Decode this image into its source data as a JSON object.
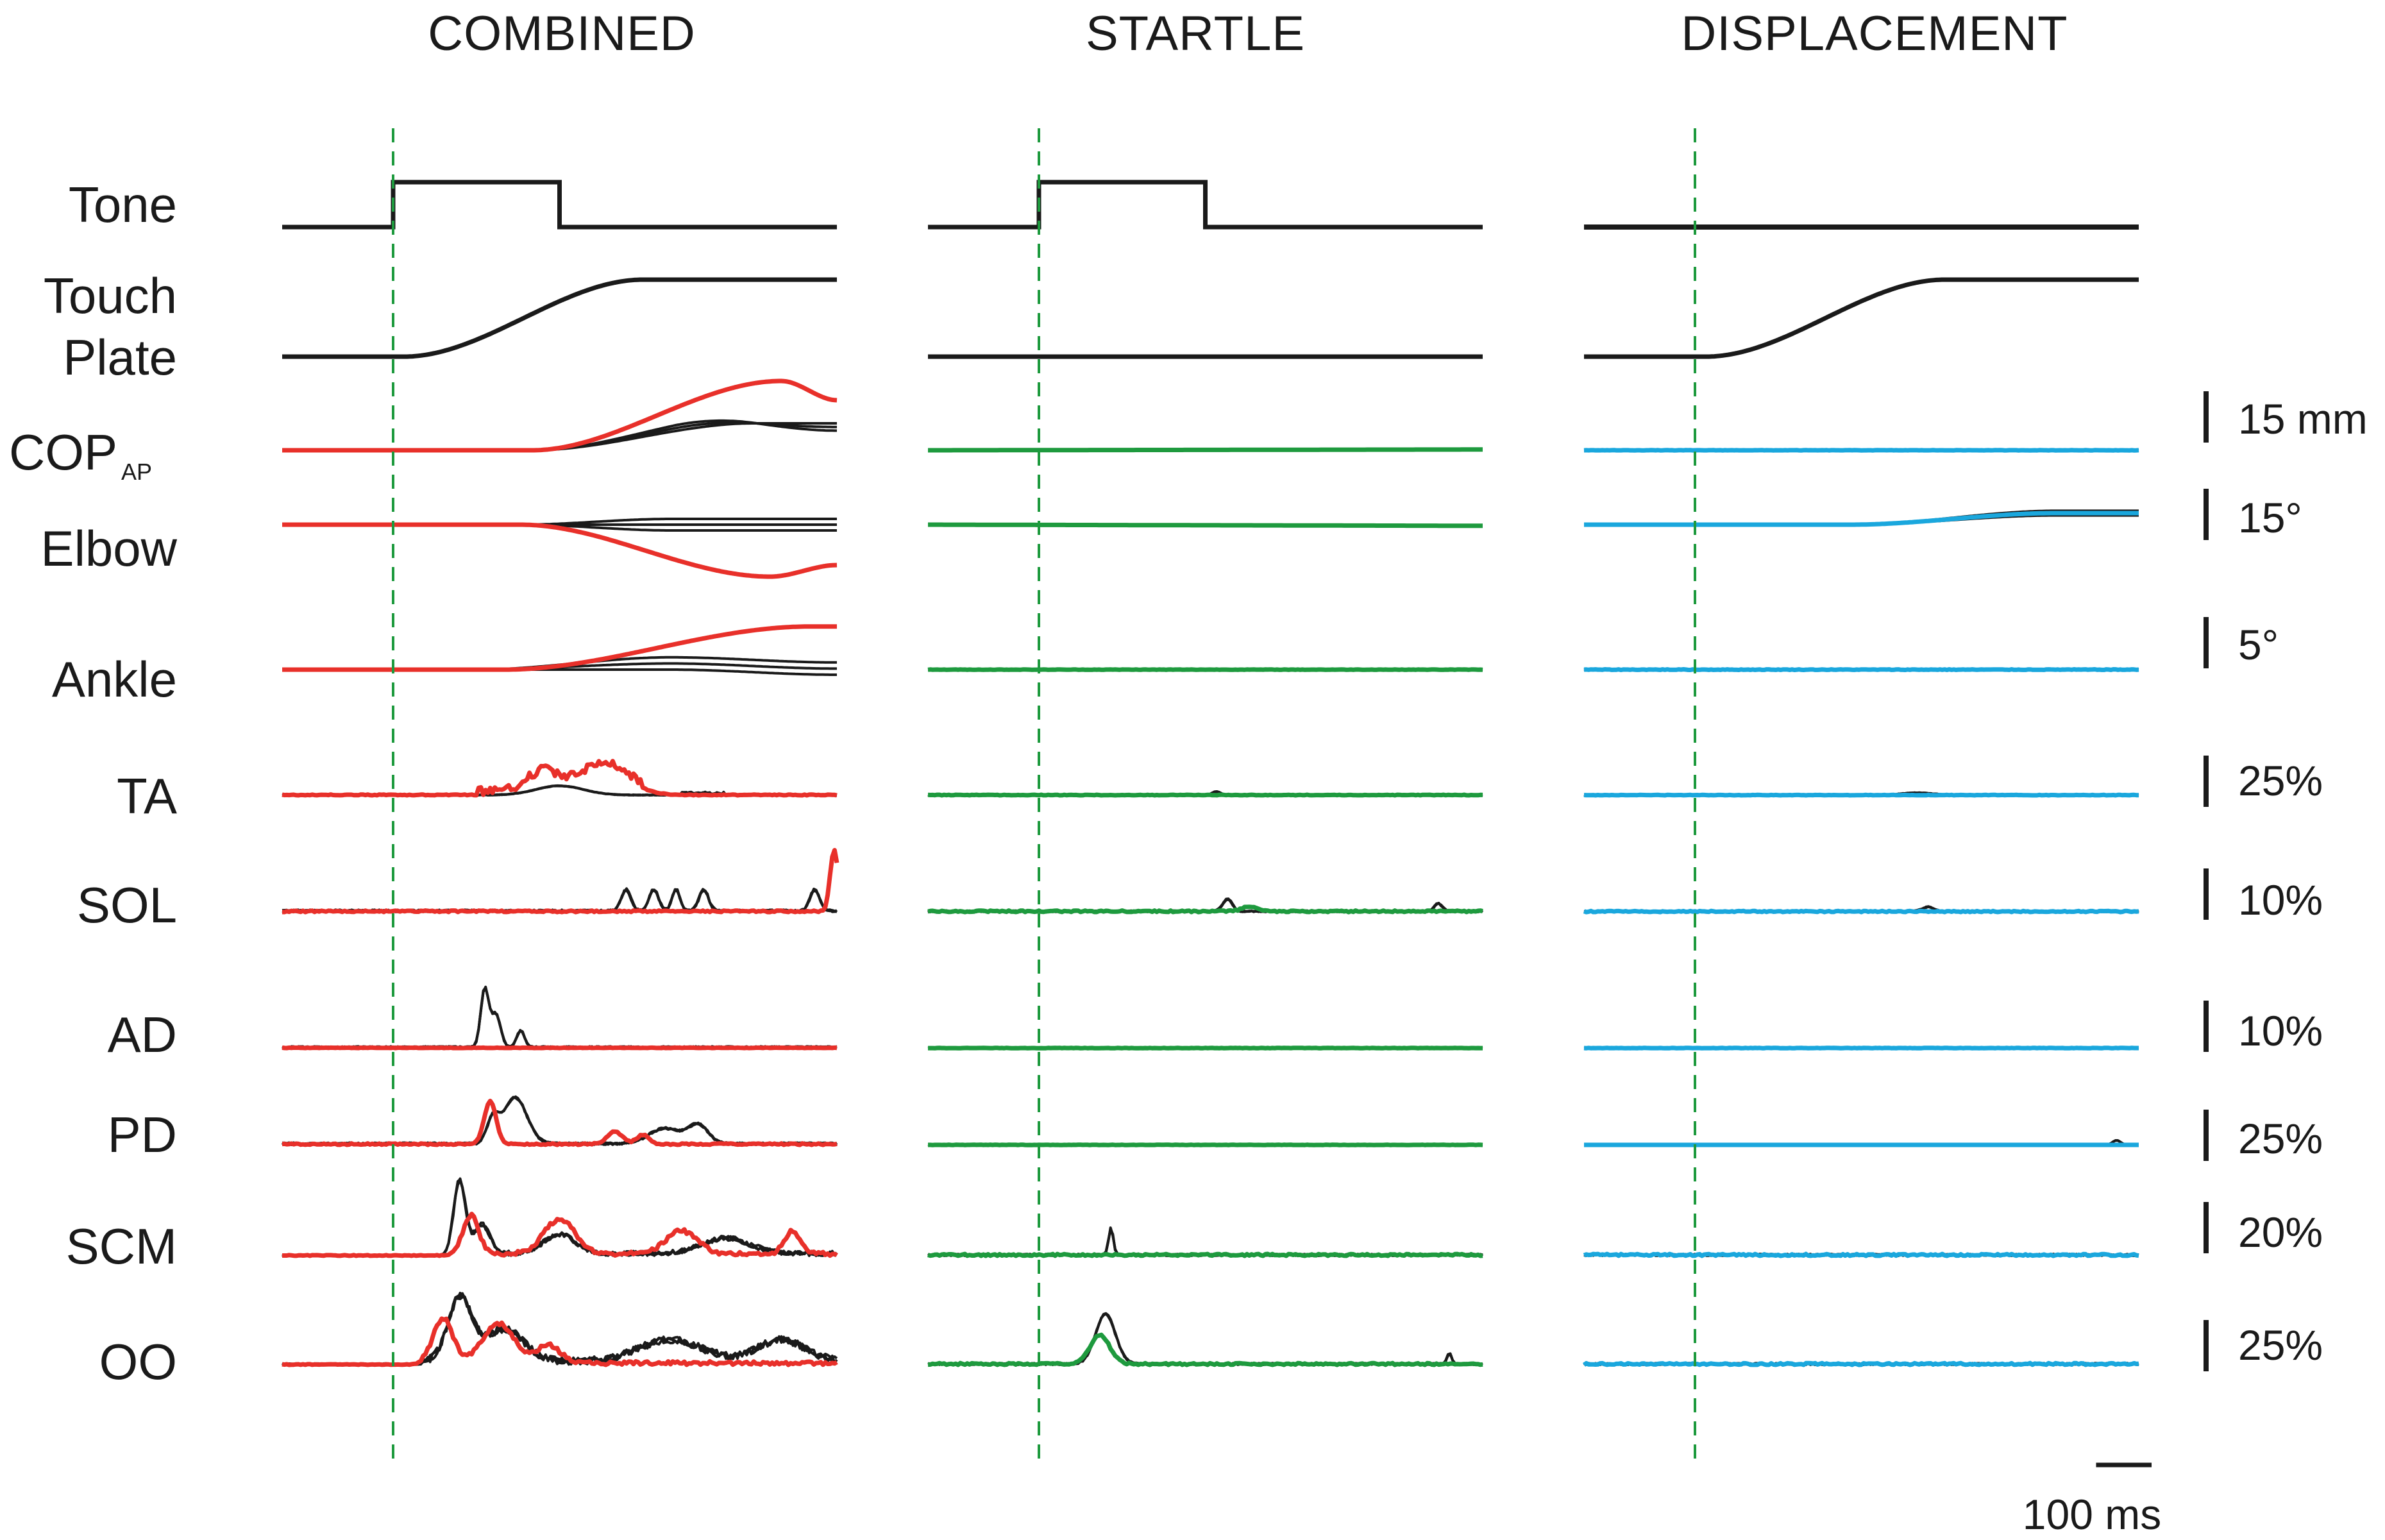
{
  "chart_data": {
    "type": "line",
    "title": "",
    "columns": [
      {
        "key": "combined",
        "title": "COMBINED",
        "trial_color": "#e8302a",
        "has_tone": true,
        "touch_onset_ms": 20
      },
      {
        "key": "startle",
        "title": "STARTLE",
        "trial_color": "#1e9a3e",
        "has_tone": true,
        "touch_onset_ms": null
      },
      {
        "key": "displacement",
        "title": "DISPLACEMENT",
        "trial_color": "#1aa7dd",
        "has_tone": false,
        "touch_onset_ms": 20
      }
    ],
    "rows": [
      {
        "key": "tone",
        "label": "Tone",
        "label_sub": "",
        "label_line2": "",
        "scale": ""
      },
      {
        "key": "touch",
        "label": "Touch",
        "label_sub": "",
        "label_line2": "Plate",
        "scale": ""
      },
      {
        "key": "cop",
        "label": "COP",
        "label_sub": "AP",
        "label_line2": "",
        "scale": "15 mm"
      },
      {
        "key": "elbow",
        "label": "Elbow",
        "label_sub": "",
        "label_line2": "",
        "scale": "15°"
      },
      {
        "key": "ankle",
        "label": "Ankle",
        "label_sub": "",
        "label_line2": "",
        "scale": "5°"
      },
      {
        "key": "ta",
        "label": "TA",
        "label_sub": "",
        "label_line2": "",
        "scale": "25%"
      },
      {
        "key": "sol",
        "label": "SOL",
        "label_sub": "",
        "label_line2": "",
        "scale": "10%"
      },
      {
        "key": "ad",
        "label": "AD",
        "label_sub": "",
        "label_line2": "",
        "scale": "10%"
      },
      {
        "key": "pd",
        "label": "PD",
        "label_sub": "",
        "label_line2": "",
        "scale": "25%"
      },
      {
        "key": "scm",
        "label": "SCM",
        "label_sub": "",
        "label_line2": "",
        "scale": "20%"
      },
      {
        "key": "oo",
        "label": "OO",
        "label_sub": "",
        "label_line2": "",
        "scale": "25%"
      }
    ],
    "time_axis": {
      "window_ms": [
        -200,
        800
      ],
      "stimulus_onset_ms": 0,
      "tone_duration_ms": 300
    },
    "scalebar": {
      "label": "100 ms",
      "duration_ms": 100
    },
    "stimulus_line_color": "#1e9a3e",
    "reference_trace_color": "#1a1a1a",
    "legend": "none",
    "grid": false
  }
}
